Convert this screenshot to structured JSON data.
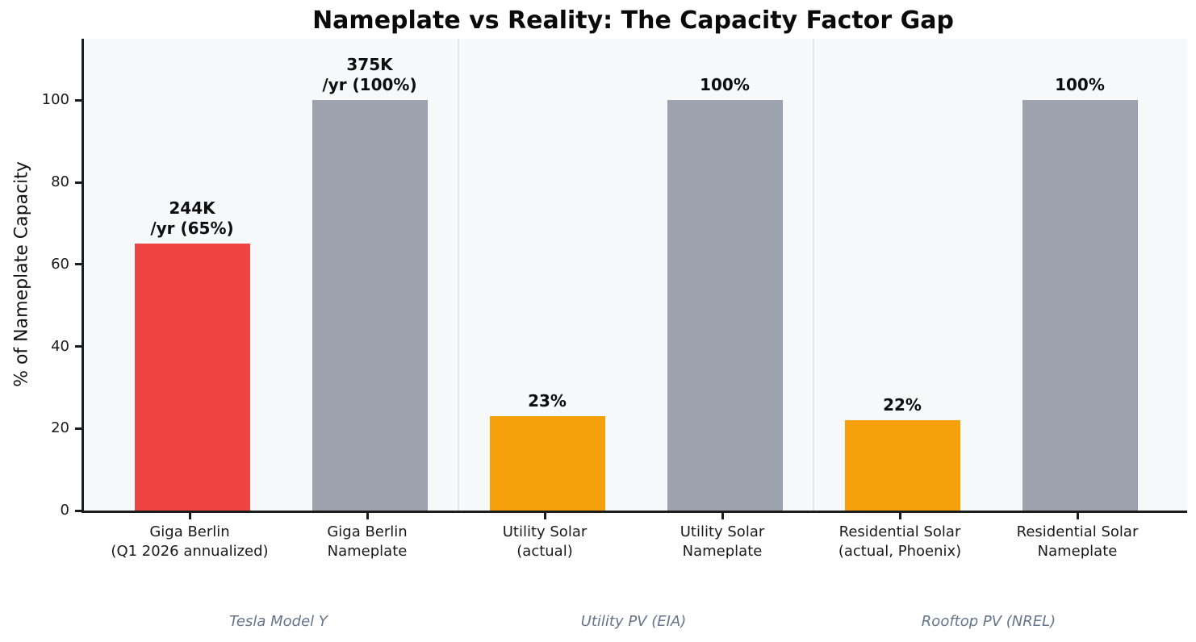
{
  "chart_data": {
    "type": "bar",
    "title": "Nameplate vs Reality: The Capacity Factor Gap",
    "xlabel": "",
    "ylabel": "% of Nameplate Capacity",
    "ylim": [
      0,
      115
    ],
    "yticks": [
      0,
      20,
      40,
      60,
      80,
      100
    ],
    "grid": false,
    "legend": "none",
    "bars": [
      {
        "category": "Giga Berlin\n(Q1 2026 annualized)",
        "value": 65,
        "label": "244K\n/yr (65%)",
        "color": "#ef4444"
      },
      {
        "category": "Giga Berlin\nNameplate",
        "value": 100,
        "label": "375K\n/yr (100%)",
        "color": "#9ca3af"
      },
      {
        "category": "Utility Solar\n(actual)",
        "value": 23,
        "label": "23%",
        "color": "#f5a00b"
      },
      {
        "category": "Utility Solar\nNameplate",
        "value": 100,
        "label": "100%",
        "color": "#9ca3af"
      },
      {
        "category": "Residential Solar\n(actual, Phoenix)",
        "value": 22,
        "label": "22%",
        "color": "#f5a00b"
      },
      {
        "category": "Residential Solar\nNameplate",
        "value": 100,
        "label": "100%",
        "color": "#9ca3af"
      }
    ],
    "groups": [
      {
        "label": "Tesla Model Y",
        "bars": [
          0,
          1
        ]
      },
      {
        "label": "Utility PV (EIA)",
        "bars": [
          2,
          3
        ]
      },
      {
        "label": "Rooftop PV (NREL)",
        "bars": [
          4,
          5
        ]
      }
    ],
    "colors": {
      "actual_tesla": "#ef4444",
      "actual_solar": "#f5a00b",
      "nameplate": "#9ca3af",
      "plot_background": "#f7f8fa",
      "divider": "#e5e7eb",
      "group_label": "#64748b",
      "axis": "#1c1c1c"
    }
  }
}
